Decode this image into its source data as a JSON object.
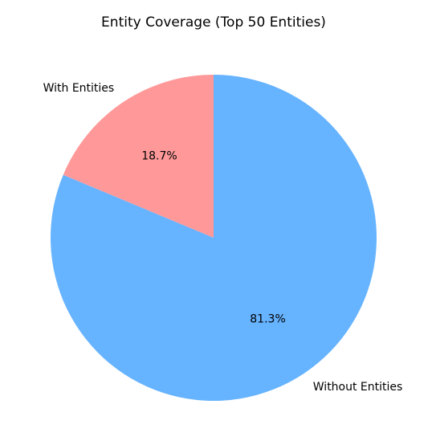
{
  "chart_data": {
    "type": "pie",
    "title": "Entity Coverage (Top 50 Entities)",
    "categories": [
      "With Entities",
      "Without Entities"
    ],
    "values": [
      18.7,
      81.3
    ],
    "value_labels": [
      "18.7%",
      "81.3%"
    ],
    "colors": [
      "#ff9999",
      "#66b3ff"
    ],
    "start_angle_deg": 90,
    "direction": "counterclockwise",
    "legend": "none"
  }
}
